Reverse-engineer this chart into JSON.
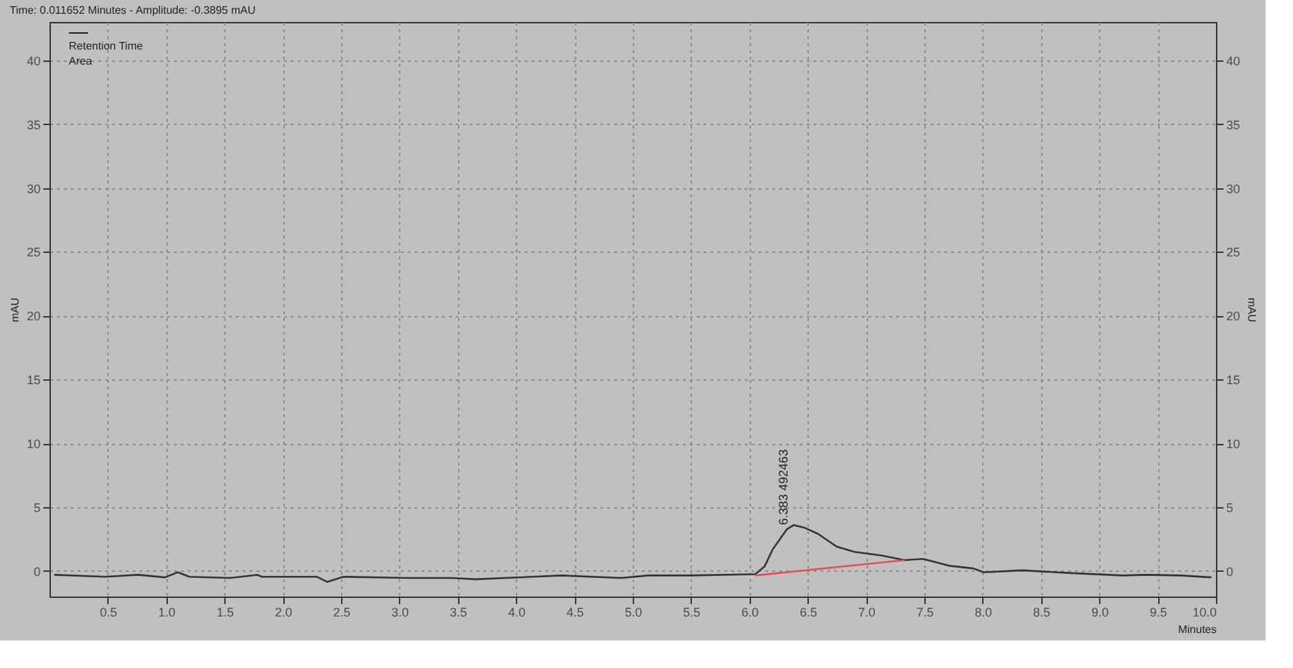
{
  "chart_data": {
    "type": "line",
    "title": "Time: 0.011652 Minutes - Amplitude: -0.3895 mAU",
    "xlabel": "Minutes",
    "ylabel": "mAU",
    "y2label": "mAU",
    "series": [
      {
        "color": "#333333",
        "x": [
          0.04,
          0.48,
          0.76,
          0.99,
          1.1,
          1.2,
          1.55,
          1.78,
          1.82,
          2.13,
          2.29,
          2.38,
          2.52,
          3.06,
          3.45,
          3.65,
          4.39,
          4.9,
          5.13,
          5.5,
          6.05,
          6.13,
          6.2,
          6.32,
          6.38,
          6.47,
          6.59,
          6.75,
          6.9,
          7.14,
          7.33,
          7.49,
          7.72,
          7.92,
          8.01,
          8.34,
          8.73,
          9.2,
          9.39,
          9.7,
          9.96
        ],
        "values": [
          -0.3,
          -0.45,
          -0.3,
          -0.5,
          -0.1,
          -0.45,
          -0.55,
          -0.3,
          -0.45,
          -0.45,
          -0.45,
          -0.85,
          -0.45,
          -0.55,
          -0.55,
          -0.65,
          -0.35,
          -0.55,
          -0.35,
          -0.35,
          -0.25,
          0.35,
          1.7,
          3.25,
          3.6,
          3.4,
          2.9,
          1.9,
          1.5,
          1.2,
          0.85,
          0.95,
          0.4,
          0.2,
          -0.1,
          0.05,
          -0.15,
          -0.35,
          -0.3,
          -0.35,
          -0.5
        ]
      },
      {
        "color": "#e05050",
        "x": [
          6.05,
          7.33
        ],
        "values": [
          -0.35,
          0.85
        ]
      }
    ],
    "annotations": [
      "Retention Time",
      "Area",
      {
        "text": "6.383 492463",
        "x": 6.383,
        "y": 3.6
      }
    ],
    "xlim": [
      0,
      10
    ],
    "xticks": [
      {
        "value": 0.5,
        "label": "0.5"
      },
      {
        "value": 1,
        "label": "1.0"
      },
      {
        "value": 1.5,
        "label": "1.5"
      },
      {
        "value": 2,
        "label": "2.0"
      },
      {
        "value": 2.5,
        "label": "2.5"
      },
      {
        "value": 3,
        "label": "3.0"
      },
      {
        "value": 3.5,
        "label": "3.5"
      },
      {
        "value": 4,
        "label": "4.0"
      },
      {
        "value": 4.5,
        "label": "4.5"
      },
      {
        "value": 5,
        "label": "5.0"
      },
      {
        "value": 5.5,
        "label": "5.5"
      },
      {
        "value": 6,
        "label": "6.0"
      },
      {
        "value": 6.5,
        "label": "6.5"
      },
      {
        "value": 7,
        "label": "7.0"
      },
      {
        "value": 7.5,
        "label": "7.5"
      },
      {
        "value": 8,
        "label": "8.0"
      },
      {
        "value": 8.5,
        "label": "8.5"
      },
      {
        "value": 9,
        "label": "9.0"
      },
      {
        "value": 9.5,
        "label": "9.5"
      },
      {
        "value": 10,
        "label": "10.0"
      }
    ],
    "ylim": [
      -2,
      43
    ],
    "yticks": [
      0,
      5,
      10,
      15,
      20,
      25,
      30,
      35,
      40
    ],
    "y2lim": [
      -2,
      43
    ],
    "y2ticks": [
      0,
      5,
      10,
      15,
      20,
      25,
      30,
      35,
      40
    ],
    "grid": true,
    "line_style": "solid",
    "marker": "none"
  }
}
